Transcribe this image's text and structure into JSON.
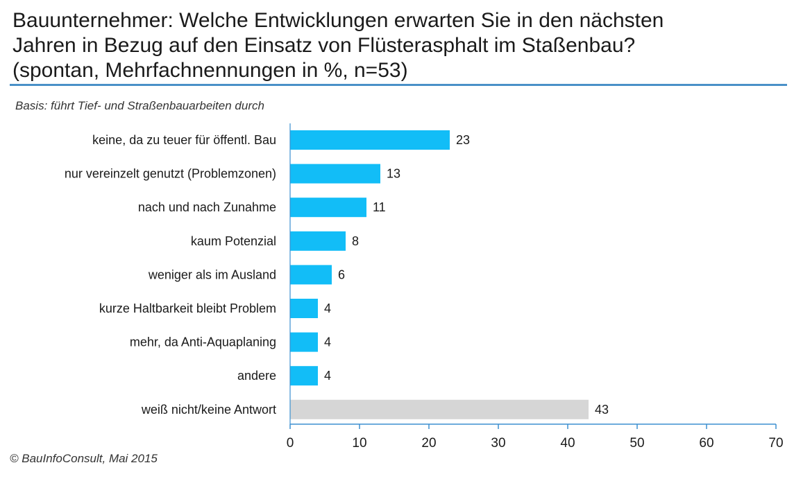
{
  "header": {
    "title_lines": [
      "Bauunternehmer: Welche Entwicklungen erwarten Sie in den nächsten",
      "Jahren in Bezug auf den Einsatz von Flüsterasphalt im Staßenbau?",
      "(spontan, Mehrfachnennungen in %, n=53)"
    ],
    "basis": "Basis: führt Tief- und Straßenbauarbeiten durch"
  },
  "footer": {
    "copyright": "© BauInfoConsult, Mai 2015"
  },
  "chart_data": {
    "type": "bar",
    "orientation": "horizontal",
    "title": "Bauunternehmer: Welche Entwicklungen erwarten Sie in den nächsten Jahren in Bezug auf den Einsatz von Flüsterasphalt im Staßenbau? (spontan, Mehrfachnennungen in %, n=53)",
    "categories": [
      "keine, da zu teuer für öffentl. Bau",
      "nur vereinzelt genutzt  (Problemzonen)",
      "nach und nach Zunahme",
      "kaum Potenzial",
      "weniger als im Ausland",
      "kurze Haltbarkeit bleibt Problem",
      "mehr, da Anti-Aquaplaning",
      "andere",
      "weiß nicht/keine Antwort"
    ],
    "values": [
      23,
      13,
      11,
      8,
      6,
      4,
      4,
      4,
      43
    ],
    "colors": [
      "#12bdf7",
      "#12bdf7",
      "#12bdf7",
      "#12bdf7",
      "#12bdf7",
      "#12bdf7",
      "#12bdf7",
      "#12bdf7",
      "#d6d6d6"
    ],
    "xlim": [
      0,
      70
    ],
    "xticks": [
      0,
      10,
      20,
      30,
      40,
      50,
      60,
      70
    ],
    "xlabel": "",
    "ylabel": "",
    "grid": false,
    "data_labels": true,
    "axis_color": "#3b8fd0"
  }
}
